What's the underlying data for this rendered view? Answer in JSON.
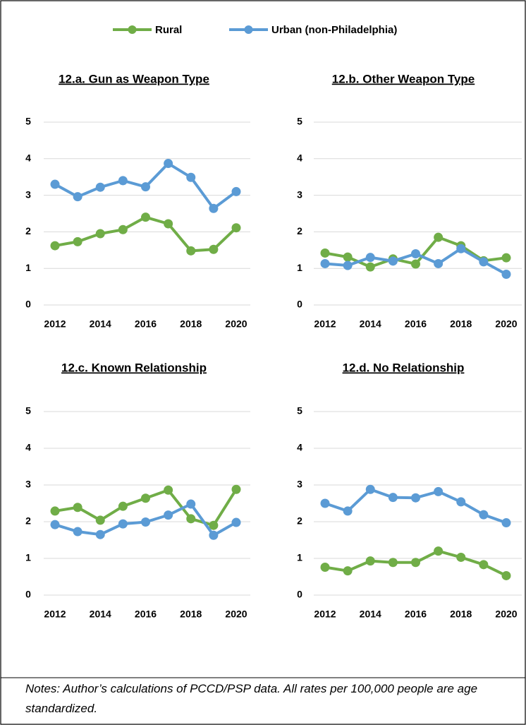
{
  "legend": [
    {
      "name": "Rural",
      "color": "#70ad47"
    },
    {
      "name": "Urban (non-Philadelphia)",
      "color": "#5b9bd5"
    }
  ],
  "notes": "Notes:  Author’s calculations of PCCD/PSP data.  All rates per 100,000 people are age standardized.",
  "chart_data": [
    {
      "type": "line",
      "title": "12.a. Gun as Weapon Type",
      "x": [
        2012,
        2013,
        2014,
        2015,
        2016,
        2017,
        2018,
        2019,
        2020
      ],
      "xlim": [
        2012,
        2020
      ],
      "xticks": [
        2012,
        2014,
        2016,
        2018,
        2020
      ],
      "ylim": [
        0,
        5
      ],
      "yticks": [
        0,
        1,
        2,
        3,
        4,
        5
      ],
      "grid": true,
      "series": [
        {
          "color": "#70ad47",
          "values": [
            1.62,
            1.73,
            1.95,
            2.06,
            2.4,
            2.22,
            1.48,
            1.52,
            2.11
          ]
        },
        {
          "color": "#5b9bd5",
          "values": [
            3.3,
            2.96,
            3.22,
            3.4,
            3.23,
            3.87,
            3.49,
            2.64,
            3.1
          ]
        }
      ]
    },
    {
      "type": "line",
      "title": "12.b. Other Weapon Type",
      "x": [
        2012,
        2013,
        2014,
        2015,
        2016,
        2017,
        2018,
        2019,
        2020
      ],
      "xlim": [
        2012,
        2020
      ],
      "xticks": [
        2012,
        2014,
        2016,
        2018,
        2020
      ],
      "ylim": [
        0,
        5
      ],
      "yticks": [
        0,
        1,
        2,
        3,
        4,
        5
      ],
      "grid": true,
      "series": [
        {
          "color": "#70ad47",
          "values": [
            1.42,
            1.31,
            1.04,
            1.26,
            1.12,
            1.85,
            1.62,
            1.21,
            1.29
          ]
        },
        {
          "color": "#5b9bd5",
          "values": [
            1.13,
            1.08,
            1.3,
            1.2,
            1.4,
            1.13,
            1.54,
            1.18,
            0.84
          ]
        }
      ]
    },
    {
      "type": "line",
      "title": "12.c. Known Relationship",
      "x": [
        2012,
        2013,
        2014,
        2015,
        2016,
        2017,
        2018,
        2019,
        2020
      ],
      "xlim": [
        2012,
        2020
      ],
      "xticks": [
        2012,
        2014,
        2016,
        2018,
        2020
      ],
      "ylim": [
        0,
        5
      ],
      "yticks": [
        0,
        1,
        2,
        3,
        4,
        5
      ],
      "grid": true,
      "series": [
        {
          "color": "#70ad47",
          "values": [
            2.29,
            2.39,
            2.04,
            2.42,
            2.64,
            2.86,
            2.08,
            1.9,
            2.88
          ]
        },
        {
          "color": "#5b9bd5",
          "values": [
            1.92,
            1.73,
            1.65,
            1.94,
            1.99,
            2.18,
            2.48,
            1.63,
            1.98
          ]
        }
      ]
    },
    {
      "type": "line",
      "title": "12.d. No Relationship",
      "x": [
        2012,
        2013,
        2014,
        2015,
        2016,
        2017,
        2018,
        2019,
        2020
      ],
      "xlim": [
        2012,
        2020
      ],
      "xticks": [
        2012,
        2014,
        2016,
        2018,
        2020
      ],
      "ylim": [
        0,
        5
      ],
      "yticks": [
        0,
        1,
        2,
        3,
        4,
        5
      ],
      "grid": true,
      "series": [
        {
          "color": "#70ad47",
          "values": [
            0.76,
            0.66,
            0.93,
            0.89,
            0.89,
            1.2,
            1.03,
            0.83,
            0.53
          ]
        },
        {
          "color": "#5b9bd5",
          "values": [
            2.5,
            2.29,
            2.88,
            2.66,
            2.65,
            2.82,
            2.54,
            2.19,
            1.97
          ]
        }
      ]
    }
  ]
}
